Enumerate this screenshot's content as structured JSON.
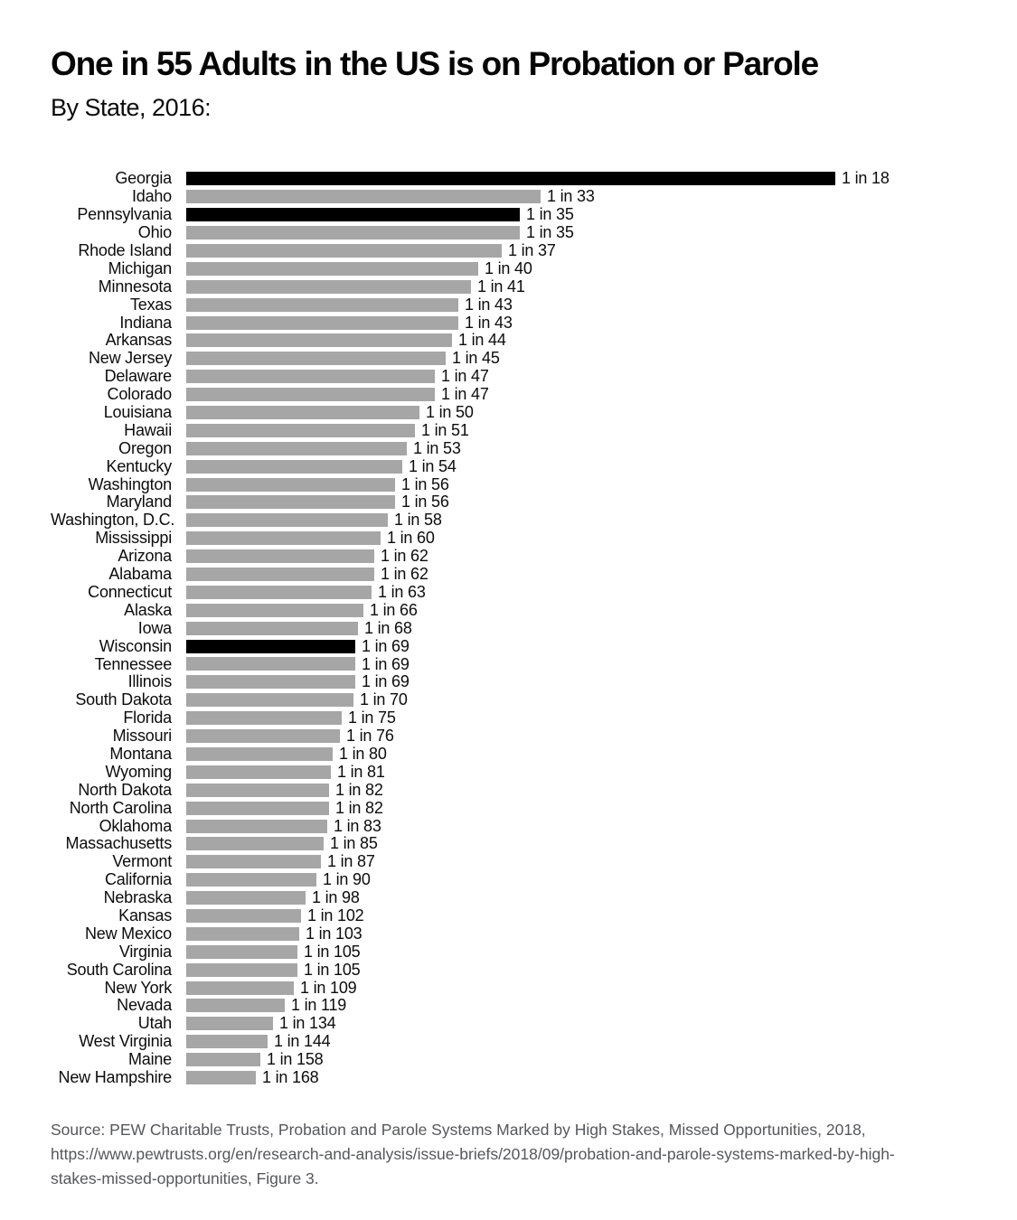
{
  "title": "One in 55 Adults in the US is on Probation or Parole",
  "subtitle": "By State, 2016:",
  "source_lines": [
    "Source: PEW Charitable Trusts, Probation and Parole Systems Marked by High Stakes, Missed Opportunities, 2018,",
    "https://www.pewtrusts.org/en/research-and-analysis/issue-briefs/2018/09/probation-and-parole-systems-marked-by-high-",
    "stakes-missed-opportunities, Figure 3."
  ],
  "colors": {
    "bar_default": "#a6a6a6",
    "bar_highlight": "#000000",
    "text": "#0c0c0c",
    "source_text": "#56575b"
  },
  "chart_data": {
    "type": "bar",
    "orientation": "horizontal",
    "title": "One in 55 Adults in the US is on Probation or Parole",
    "subtitle": "By State, 2016:",
    "value_meaning": "1 adult in N is on probation or parole; bar length proportional to 1/N",
    "grid": false,
    "legend": false,
    "bars": [
      {
        "state": "Georgia",
        "n": 18,
        "label": "1 in 18",
        "highlight": true
      },
      {
        "state": "Idaho",
        "n": 33,
        "label": "1 in 33",
        "highlight": false
      },
      {
        "state": "Pennsylvania",
        "n": 35,
        "label": "1 in 35",
        "highlight": true
      },
      {
        "state": "Ohio",
        "n": 35,
        "label": "1 in 35",
        "highlight": false
      },
      {
        "state": "Rhode Island",
        "n": 37,
        "label": "1 in 37",
        "highlight": false
      },
      {
        "state": "Michigan",
        "n": 40,
        "label": "1 in 40",
        "highlight": false
      },
      {
        "state": "Minnesota",
        "n": 41,
        "label": "1 in 41",
        "highlight": false
      },
      {
        "state": "Texas",
        "n": 43,
        "label": "1 in 43",
        "highlight": false
      },
      {
        "state": "Indiana",
        "n": 43,
        "label": "1 in 43",
        "highlight": false
      },
      {
        "state": "Arkansas",
        "n": 44,
        "label": "1 in 44",
        "highlight": false
      },
      {
        "state": "New Jersey",
        "n": 45,
        "label": "1 in 45",
        "highlight": false
      },
      {
        "state": "Delaware",
        "n": 47,
        "label": "1 in 47",
        "highlight": false
      },
      {
        "state": "Colorado",
        "n": 47,
        "label": "1 in 47",
        "highlight": false
      },
      {
        "state": "Louisiana",
        "n": 50,
        "label": "1 in 50",
        "highlight": false
      },
      {
        "state": "Hawaii",
        "n": 51,
        "label": "1 in 51",
        "highlight": false
      },
      {
        "state": "Oregon",
        "n": 53,
        "label": "1 in 53",
        "highlight": false
      },
      {
        "state": "Kentucky",
        "n": 54,
        "label": "1 in 54",
        "highlight": false
      },
      {
        "state": "Washington",
        "n": 56,
        "label": "1 in 56",
        "highlight": false
      },
      {
        "state": "Maryland",
        "n": 56,
        "label": "1 in 56",
        "highlight": false
      },
      {
        "state": "Washington, D.C.",
        "n": 58,
        "label": "1 in 58",
        "highlight": false
      },
      {
        "state": "Mississippi",
        "n": 60,
        "label": "1 in 60",
        "highlight": false
      },
      {
        "state": "Arizona",
        "n": 62,
        "label": "1 in 62",
        "highlight": false
      },
      {
        "state": "Alabama",
        "n": 62,
        "label": "1 in 62",
        "highlight": false
      },
      {
        "state": "Connecticut",
        "n": 63,
        "label": "1 in 63",
        "highlight": false
      },
      {
        "state": "Alaska",
        "n": 66,
        "label": "1 in 66",
        "highlight": false
      },
      {
        "state": "Iowa",
        "n": 68,
        "label": "1 in 68",
        "highlight": false
      },
      {
        "state": "Wisconsin",
        "n": 69,
        "label": "1 in 69",
        "highlight": true
      },
      {
        "state": "Tennessee",
        "n": 69,
        "label": "1 in 69",
        "highlight": false
      },
      {
        "state": "Illinois",
        "n": 69,
        "label": "1 in 69",
        "highlight": false
      },
      {
        "state": "South Dakota",
        "n": 70,
        "label": "1 in 70",
        "highlight": false
      },
      {
        "state": "Florida",
        "n": 75,
        "label": "1 in 75",
        "highlight": false
      },
      {
        "state": "Missouri",
        "n": 76,
        "label": "1 in 76",
        "highlight": false
      },
      {
        "state": "Montana",
        "n": 80,
        "label": "1 in 80",
        "highlight": false
      },
      {
        "state": "Wyoming",
        "n": 81,
        "label": "1 in 81",
        "highlight": false
      },
      {
        "state": "North Dakota",
        "n": 82,
        "label": "1 in 82",
        "highlight": false
      },
      {
        "state": "North Carolina",
        "n": 82,
        "label": "1 in 82",
        "highlight": false
      },
      {
        "state": "Oklahoma",
        "n": 83,
        "label": "1 in 83",
        "highlight": false
      },
      {
        "state": "Massachusetts",
        "n": 85,
        "label": "1 in 85",
        "highlight": false
      },
      {
        "state": "Vermont",
        "n": 87,
        "label": "1 in 87",
        "highlight": false
      },
      {
        "state": "California",
        "n": 90,
        "label": "1 in 90",
        "highlight": false
      },
      {
        "state": "Nebraska",
        "n": 98,
        "label": "1 in 98",
        "highlight": false
      },
      {
        "state": "Kansas",
        "n": 102,
        "label": "1 in 102",
        "highlight": false
      },
      {
        "state": "New Mexico",
        "n": 103,
        "label": "1 in 103",
        "highlight": false
      },
      {
        "state": "Virginia",
        "n": 105,
        "label": "1 in 105",
        "highlight": false
      },
      {
        "state": "South Carolina",
        "n": 105,
        "label": "1 in 105",
        "highlight": false
      },
      {
        "state": "New York",
        "n": 109,
        "label": "1 in 109",
        "highlight": false
      },
      {
        "state": "Nevada",
        "n": 119,
        "label": "1 in 119",
        "highlight": false
      },
      {
        "state": "Utah",
        "n": 134,
        "label": "1 in 134",
        "highlight": false
      },
      {
        "state": "West Virginia",
        "n": 144,
        "label": "1 in 144",
        "highlight": false
      },
      {
        "state": "Maine",
        "n": 158,
        "label": "1 in 158",
        "highlight": false
      },
      {
        "state": "New Hampshire",
        "n": 168,
        "label": "1 in 168",
        "highlight": false
      }
    ]
  }
}
